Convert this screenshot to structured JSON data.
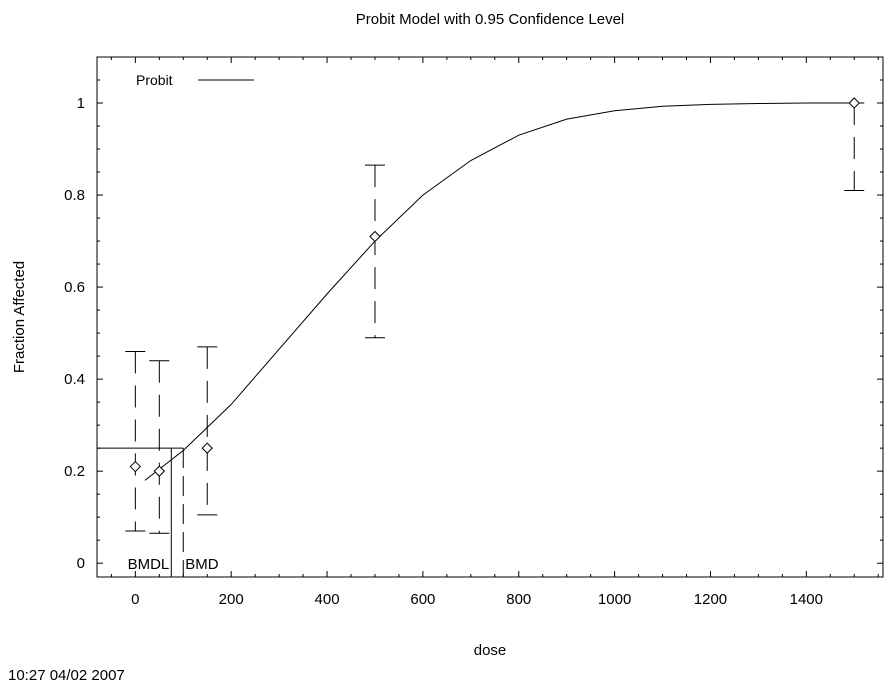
{
  "chart_data": {
    "type": "scatter",
    "title": "Probit Model with 0.95 Confidence Level",
    "xlabel": "dose",
    "ylabel": "Fraction Affected",
    "xlim": [
      -80,
      1560
    ],
    "ylim": [
      -0.03,
      1.1
    ],
    "xticks": [
      0,
      200,
      400,
      600,
      800,
      1000,
      1200,
      1400
    ],
    "yticks": [
      0,
      0.2,
      0.4,
      0.6,
      0.8,
      1
    ],
    "xtick_labels": [
      "0",
      "200",
      "400",
      "600",
      "800",
      "1000",
      "1200",
      "1400"
    ],
    "ytick_labels": [
      "0",
      "0.2",
      "0.4",
      "0.6",
      "0.8",
      "1"
    ],
    "grid": false,
    "legend": {
      "position": "top-left",
      "entries": [
        "Probit"
      ]
    },
    "points": [
      {
        "x": 0,
        "y": 0.21,
        "lower": 0.07,
        "upper": 0.46
      },
      {
        "x": 50,
        "y": 0.2,
        "lower": 0.065,
        "upper": 0.44
      },
      {
        "x": 150,
        "y": 0.25,
        "lower": 0.105,
        "upper": 0.47
      },
      {
        "x": 500,
        "y": 0.71,
        "lower": 0.49,
        "upper": 0.865
      },
      {
        "x": 1500,
        "y": 1.0,
        "lower": 0.81,
        "upper": 1.0
      }
    ],
    "model": {
      "name": "Probit",
      "x": [
        20,
        100,
        200,
        300,
        400,
        500,
        600,
        700,
        800,
        900,
        1000,
        1100,
        1200,
        1300,
        1400,
        1500
      ],
      "y": [
        0.18,
        0.245,
        0.345,
        0.465,
        0.585,
        0.7,
        0.8,
        0.875,
        0.93,
        0.965,
        0.983,
        0.993,
        0.997,
        0.999,
        1.0,
        1.0
      ]
    },
    "bmr_level": 0.25,
    "bmd": 100,
    "bmdl": 75,
    "bmd_label": "BMD",
    "bmdl_label": "BMDL"
  },
  "timestamp": "10:27 04/02 2007"
}
